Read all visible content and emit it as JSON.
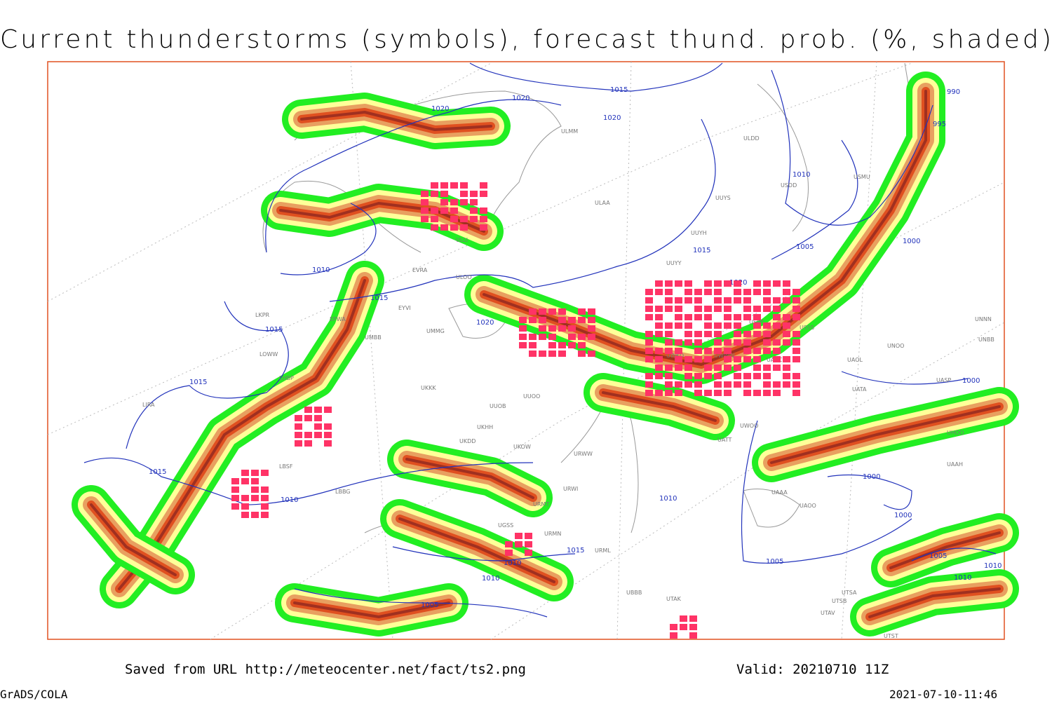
{
  "header": {
    "title": "Current thunderstorms (symbols), forecast thund. prob. (%, shaded)"
  },
  "map": {
    "isobar_labels": [
      1010,
      1015,
      1020,
      1020,
      1020,
      1015,
      1010,
      1015,
      1020,
      1015,
      1015,
      1010,
      1005,
      1000,
      995,
      990,
      1000,
      1000,
      1000,
      1010,
      1015,
      1010,
      1010,
      1005,
      1005,
      1005,
      1010,
      1010,
      1015,
      1020
    ],
    "stations": [
      "ULMM",
      "ULDD",
      "ULAA",
      "UUYS",
      "USDD",
      "USMU",
      "UUYH",
      "UUYY",
      "ULLI",
      "ULOO",
      "EVRA",
      "EYVI",
      "UMMG",
      "UMBB",
      "EPWA",
      "LKPR",
      "LOWW",
      "LHBP",
      "LIRA",
      "LBSF",
      "LBBG",
      "UKKK",
      "UUOB",
      "UUOO",
      "UKHH",
      "UKDD",
      "UKOW",
      "URWW",
      "URWI",
      "URMT",
      "URMN",
      "URML",
      "UGSS",
      "UBBB",
      "UTAK",
      "UATT",
      "UWOO",
      "UAAA",
      "UACC",
      "UAOO",
      "UNBB",
      "UNOO",
      "UASP",
      "UAAH",
      "UATA",
      "UAOL",
      "UTSA",
      "UTSB",
      "UTAV",
      "UTST",
      "USPP",
      "USSS",
      "UWKD",
      "UWWW",
      "UNNN",
      "UHOO"
    ]
  },
  "footer": {
    "source": "Saved from URL http://meteocenter.net/fact/ts2.png",
    "valid": "Valid: 20210710 11Z",
    "software": "GrADS/COLA",
    "timestamp": "2021-07-10-11:46"
  }
}
